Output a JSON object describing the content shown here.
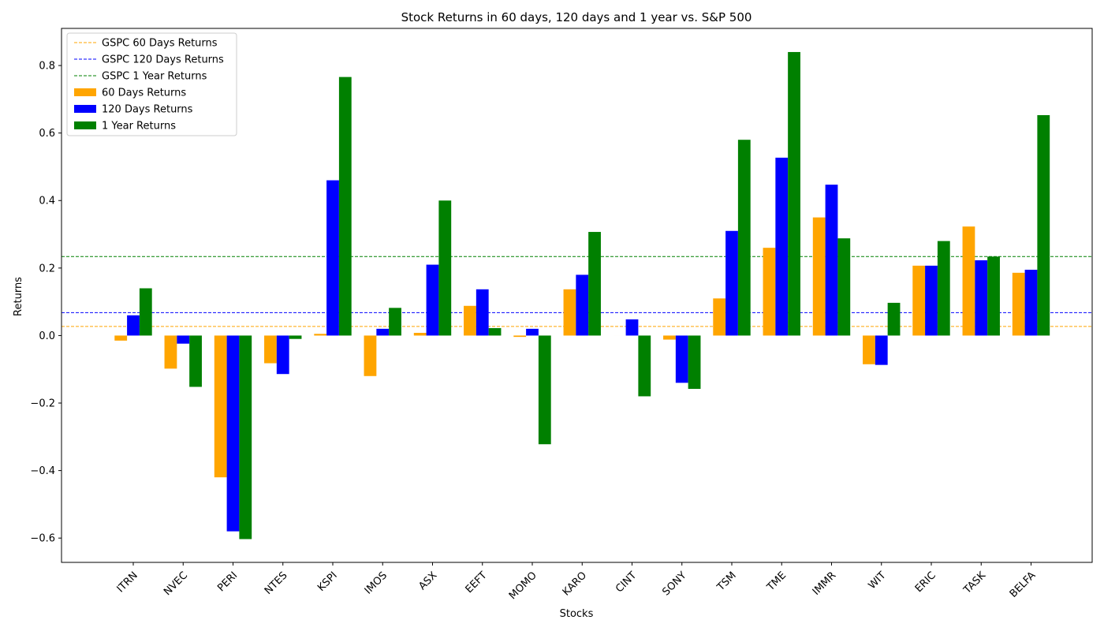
{
  "chart_data": {
    "type": "bar",
    "title": "Stock Returns in 60 days, 120 days and 1 year vs. S&P 500",
    "xlabel": "Stocks",
    "ylabel": "Returns",
    "categories": [
      "ITRN",
      "NVEC",
      "PERI",
      "NTES",
      "KSPI",
      "IMOS",
      "ASX",
      "EEFT",
      "MOMO",
      "KARO",
      "CINT",
      "SONY",
      "TSM",
      "TME",
      "IMMR",
      "WIT",
      "ERIC",
      "TASK",
      "BELFA"
    ],
    "series": [
      {
        "name": "60 Days Returns",
        "color": "#ffa500",
        "values": [
          -0.015,
          -0.098,
          -0.42,
          -0.082,
          0.005,
          -0.12,
          0.008,
          0.088,
          -0.004,
          0.137,
          0.0,
          -0.012,
          0.11,
          0.26,
          0.35,
          -0.085,
          0.207,
          0.323,
          0.186
        ]
      },
      {
        "name": "120 Days Returns",
        "color": "#0000ff",
        "values": [
          0.06,
          -0.024,
          -0.58,
          -0.114,
          0.46,
          0.02,
          0.21,
          0.137,
          0.02,
          0.18,
          0.048,
          -0.14,
          0.31,
          0.527,
          0.447,
          -0.087,
          0.207,
          0.223,
          0.195
        ]
      },
      {
        "name": "1 Year Returns",
        "color": "#008000",
        "values": [
          0.14,
          -0.152,
          -0.603,
          -0.01,
          0.766,
          0.082,
          0.4,
          0.022,
          -0.322,
          0.307,
          -0.18,
          -0.158,
          0.58,
          0.84,
          0.288,
          0.097,
          0.28,
          0.234,
          0.653
        ]
      }
    ],
    "reference_lines": [
      {
        "name": "GSPC 60 Days Returns",
        "value": 0.027,
        "color": "#ffa500"
      },
      {
        "name": "GSPC 120 Days Returns",
        "value": 0.068,
        "color": "#0000ff"
      },
      {
        "name": "GSPC 1 Year Returns",
        "value": 0.234,
        "color": "#008000"
      }
    ],
    "yticks": [
      -0.6,
      -0.4,
      -0.2,
      0.0,
      0.2,
      0.4,
      0.6,
      0.8
    ],
    "ytick_labels": [
      "−0.6",
      "−0.4",
      "−0.2",
      "0.0",
      "0.2",
      "0.4",
      "0.6",
      "0.8"
    ],
    "ylim": [
      -0.672,
      0.91
    ],
    "grid": false,
    "legend_position": "upper-left"
  }
}
